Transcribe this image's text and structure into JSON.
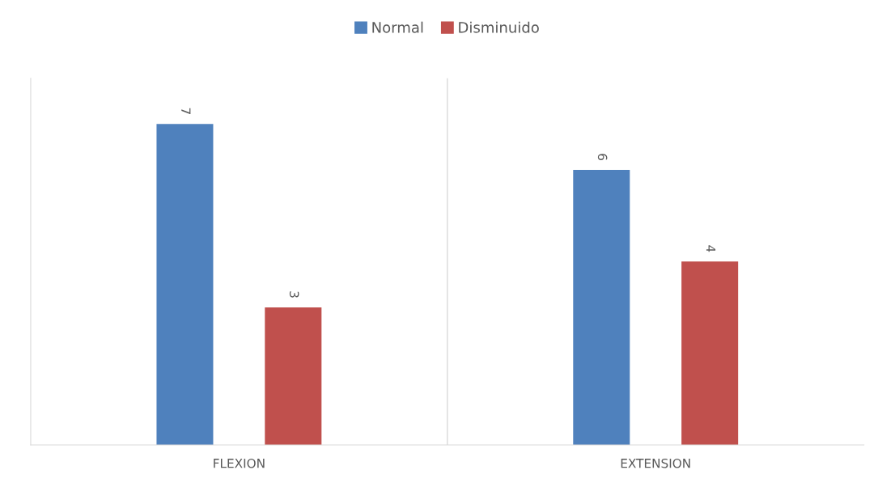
{
  "chart_data": {
    "type": "bar",
    "categories": [
      "FLEXION",
      "EXTENSION"
    ],
    "series": [
      {
        "name": "Normal",
        "color": "#4f81bd",
        "values": [
          7,
          6
        ]
      },
      {
        "name": "Disminuido",
        "color": "#c0504d",
        "values": [
          3,
          4
        ]
      }
    ],
    "ylim": [
      0,
      8
    ],
    "tick_labels": "x",
    "data_labels": true,
    "legend": "top",
    "grid": "x"
  }
}
